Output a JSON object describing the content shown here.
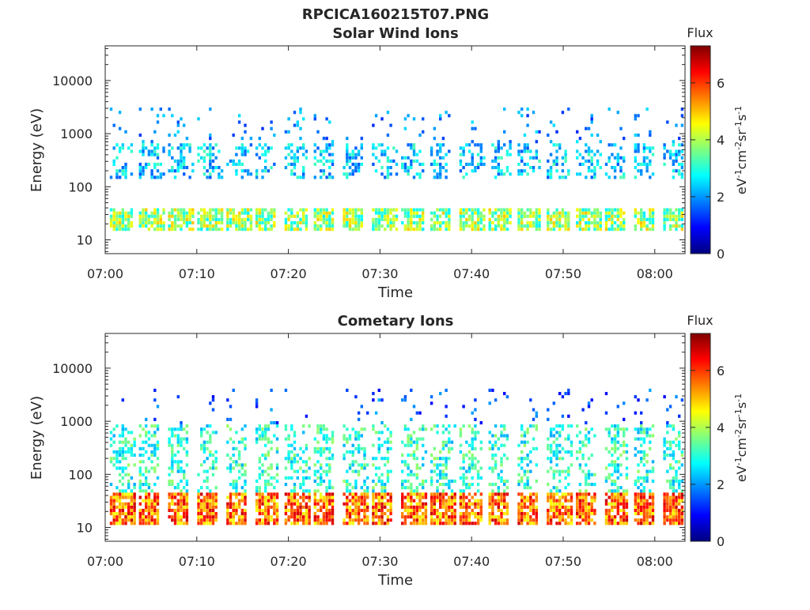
{
  "figure": {
    "title": "RPCICA160215T07.PNG"
  },
  "colorbar_stops": [
    "#00007f",
    "#0000ff",
    "#007fff",
    "#00ffff",
    "#7fff7f",
    "#ffff00",
    "#ff7f00",
    "#ff0000",
    "#7f0000"
  ],
  "chart_data": [
    {
      "type": "heatmap",
      "title": "Solar Wind Ions",
      "xlabel": "Time",
      "ylabel": "Energy (eV)",
      "x_ticks": [
        "07:00",
        "07:10",
        "07:20",
        "07:30",
        "07:40",
        "07:50",
        "08:00"
      ],
      "y_ticks": [
        "10",
        "100",
        "1000",
        "10000"
      ],
      "y_scale": "log",
      "ylim_eV": [
        5.5,
        45000
      ],
      "colorbar": {
        "title": "Flux",
        "unit_main": "eV",
        "unit_sup1": "-1",
        "unit_cm": "cm",
        "unit_sup2": "-2",
        "unit_sr": "sr",
        "unit_sup3": "-1",
        "unit_s": "s",
        "unit_sup4": "-1",
        "ticks": [
          "0",
          "2",
          "4",
          "6"
        ],
        "range": [
          0,
          7.3
        ]
      },
      "sweeps": {
        "count": 22,
        "start_min": 0.5,
        "period_min": 3.18
      },
      "low_band": {
        "e_min": 14,
        "e_max": 42,
        "flux_mean": 3.8
      },
      "mid_band": {
        "e_min": 150,
        "e_max": 700,
        "flux_mean": 2.4
      },
      "sparse_high": {
        "e_min": 700,
        "e_max": 3000,
        "flux_mean": 1.9
      }
    },
    {
      "type": "heatmap",
      "title": "Cometary Ions",
      "xlabel": "Time",
      "ylabel": "Energy (eV)",
      "x_ticks": [
        "07:00",
        "07:10",
        "07:20",
        "07:30",
        "07:40",
        "07:50",
        "08:00"
      ],
      "y_ticks": [
        "10",
        "100",
        "1000",
        "10000"
      ],
      "y_scale": "log",
      "ylim_eV": [
        5.5,
        45000
      ],
      "colorbar": {
        "title": "Flux",
        "unit_main": "eV",
        "unit_sup1": "-1",
        "unit_cm": "cm",
        "unit_sup2": "-2",
        "unit_sr": "sr",
        "unit_sup3": "-1",
        "unit_s": "s",
        "unit_sup4": "-1",
        "ticks": [
          "0",
          "2",
          "4",
          "6"
        ],
        "range": [
          0,
          7.3
        ]
      },
      "sweeps": {
        "count": 22,
        "start_min": 0.5,
        "period_min": 3.18
      },
      "low_band": {
        "e_min": 11,
        "e_max": 45,
        "flux_mean": 5.6
      },
      "mid_band": {
        "e_min": 45,
        "e_max": 900,
        "flux_mean": 3.0
      },
      "sparse_high": {
        "e_min": 900,
        "e_max": 4000,
        "flux_mean": 1.5
      }
    }
  ]
}
